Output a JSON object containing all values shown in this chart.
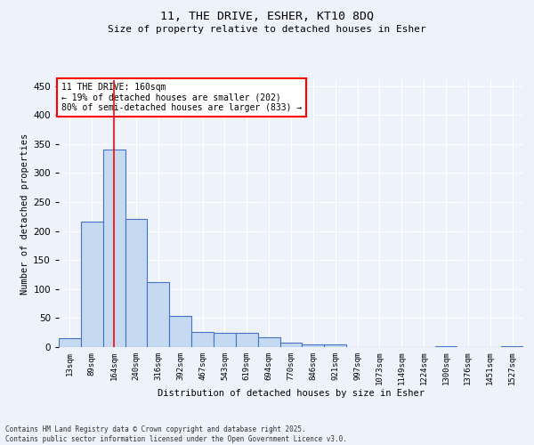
{
  "title_line1": "11, THE DRIVE, ESHER, KT10 8DQ",
  "title_line2": "Size of property relative to detached houses in Esher",
  "xlabel": "Distribution of detached houses by size in Esher",
  "ylabel": "Number of detached properties",
  "bar_labels": [
    "13sqm",
    "89sqm",
    "164sqm",
    "240sqm",
    "316sqm",
    "392sqm",
    "467sqm",
    "543sqm",
    "619sqm",
    "694sqm",
    "770sqm",
    "846sqm",
    "921sqm",
    "997sqm",
    "1073sqm",
    "1149sqm",
    "1224sqm",
    "1300sqm",
    "1376sqm",
    "1451sqm",
    "1527sqm"
  ],
  "bar_values": [
    15,
    216,
    340,
    221,
    112,
    54,
    26,
    25,
    25,
    17,
    8,
    5,
    4,
    0,
    0,
    0,
    0,
    1,
    0,
    0,
    2
  ],
  "bar_color": "#c5d9f1",
  "bar_edge_color": "#4472c4",
  "vline_x": 2,
  "vline_color": "#ff0000",
  "annotation_text": "11 THE DRIVE: 160sqm\n← 19% of detached houses are smaller (202)\n80% of semi-detached houses are larger (833) →",
  "annotation_box_color": "#ffffff",
  "annotation_box_edge_color": "#ff0000",
  "ylim": [
    0,
    460
  ],
  "yticks": [
    0,
    50,
    100,
    150,
    200,
    250,
    300,
    350,
    400,
    450
  ],
  "background_color": "#eef2fa",
  "grid_color": "#ffffff",
  "footer_line1": "Contains HM Land Registry data © Crown copyright and database right 2025.",
  "footer_line2": "Contains public sector information licensed under the Open Government Licence v3.0."
}
